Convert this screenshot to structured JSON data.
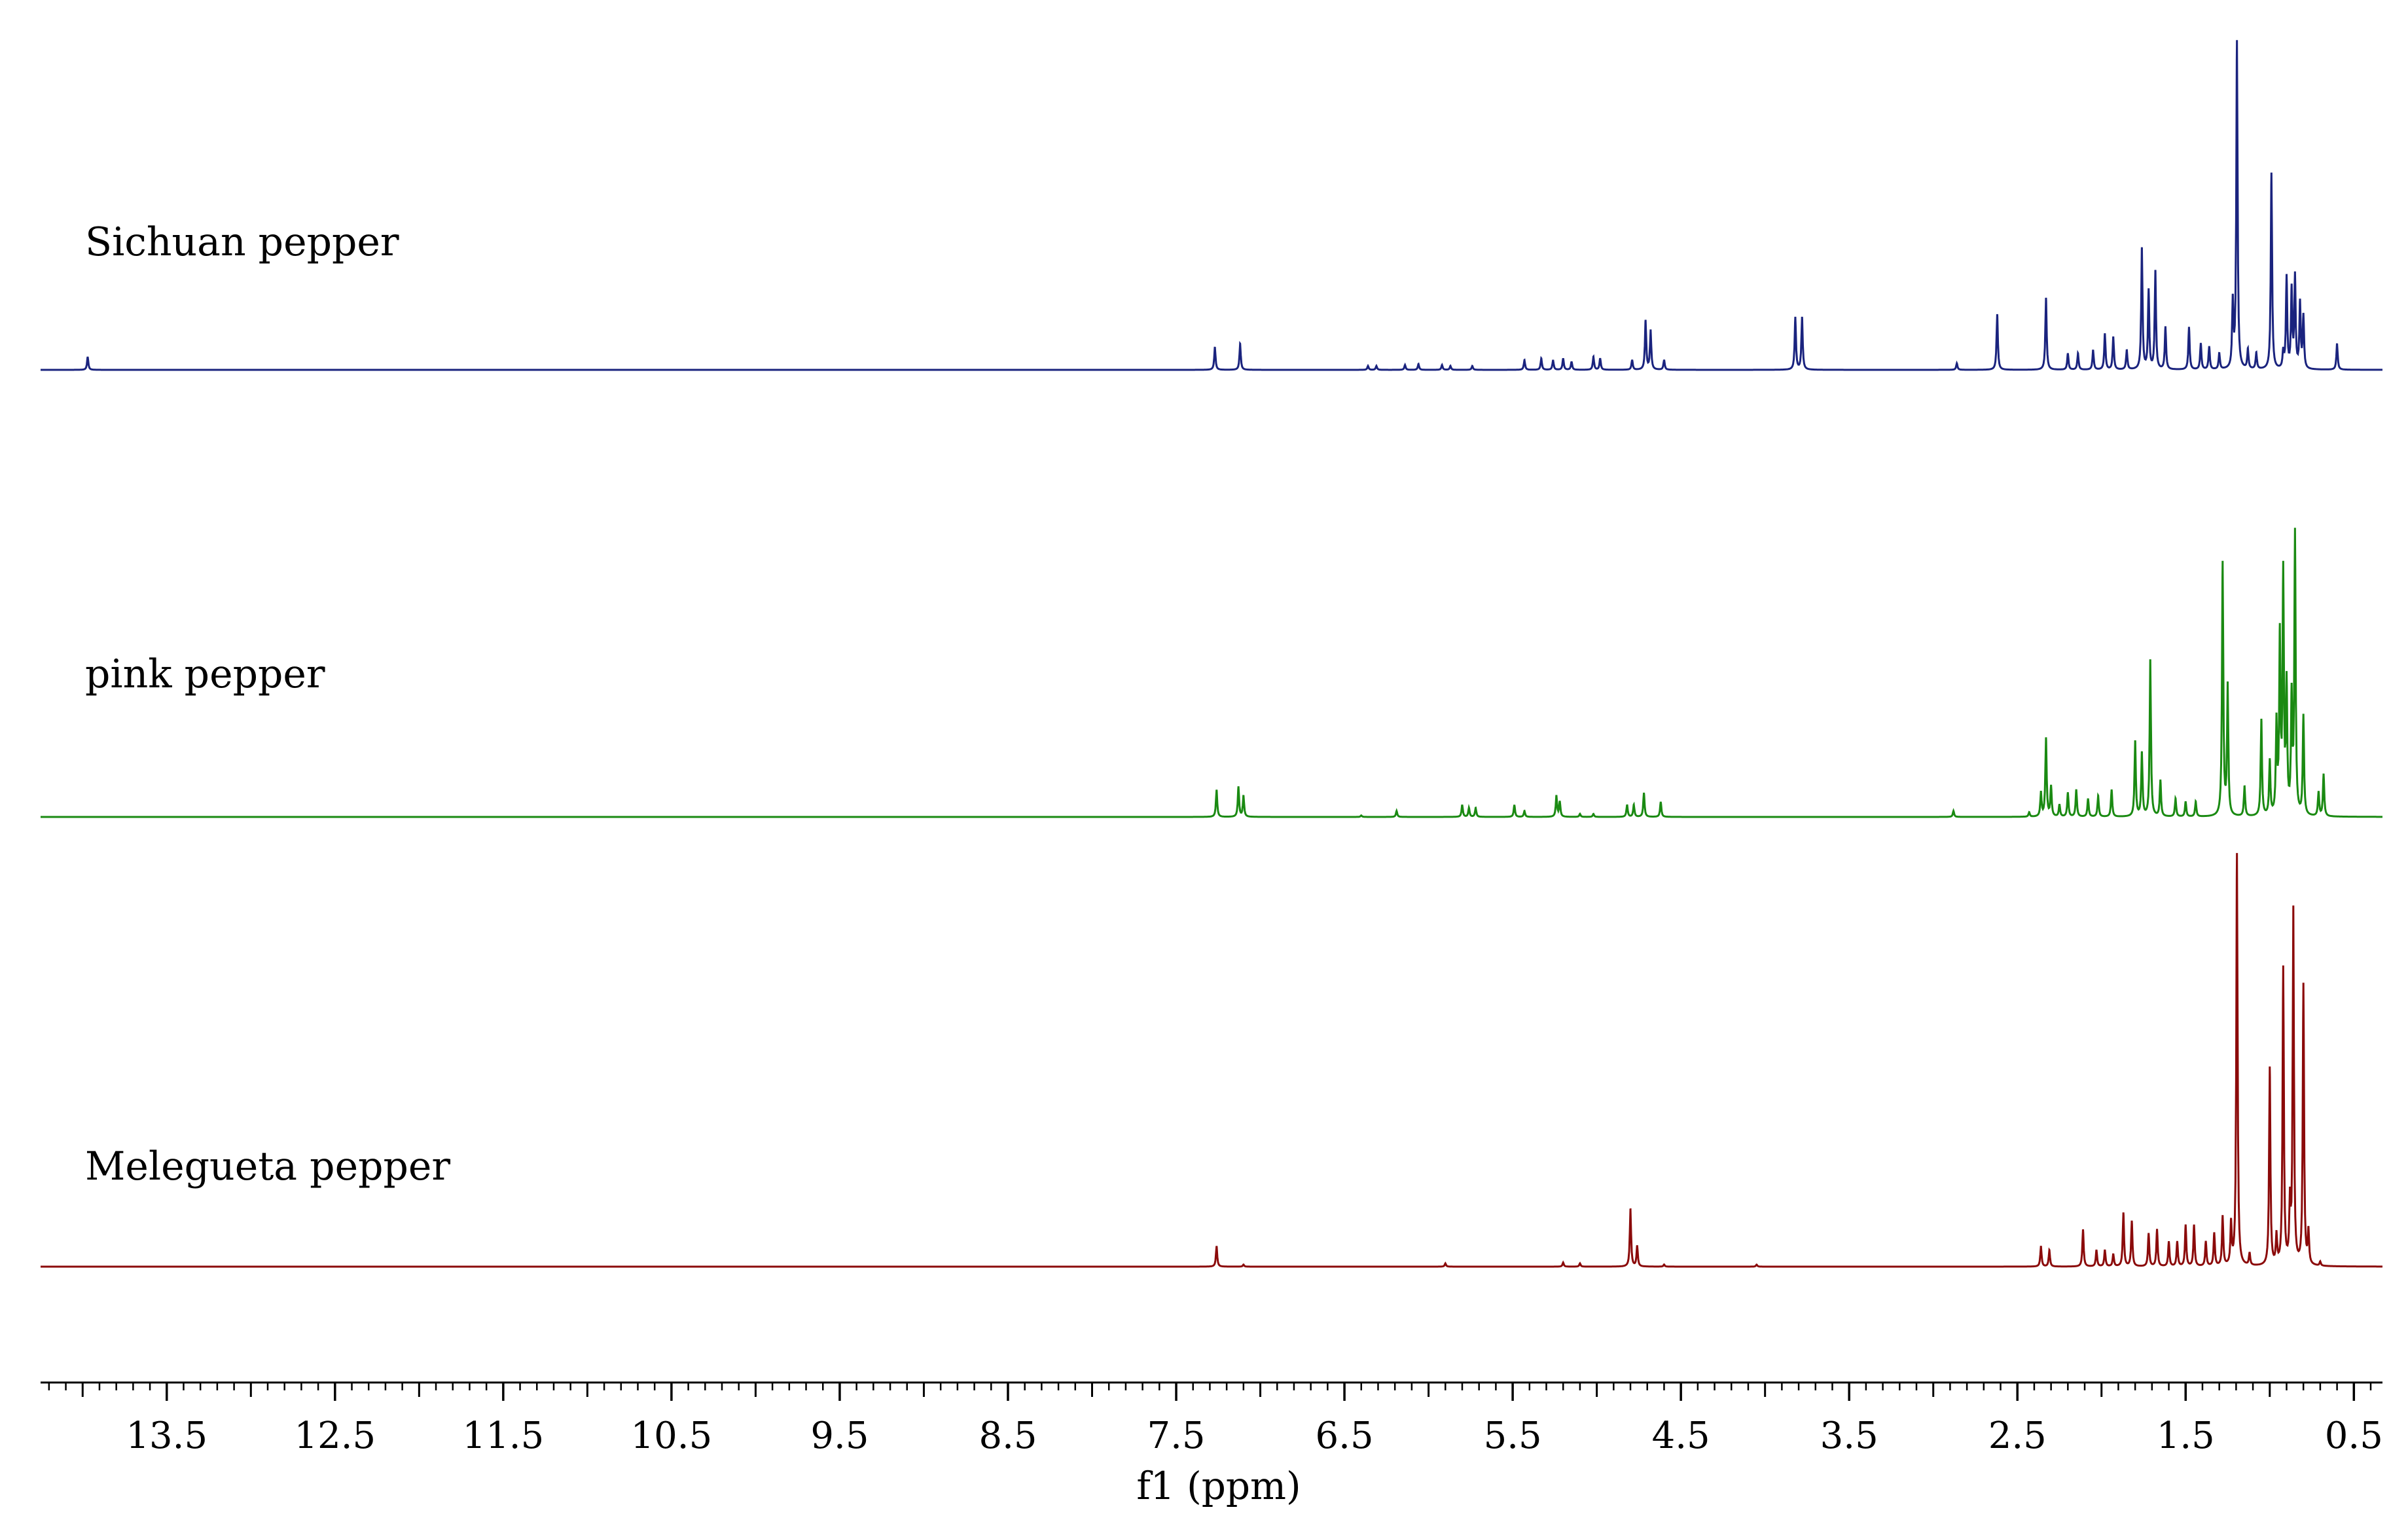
{
  "chart_data": {
    "type": "line",
    "title": "",
    "xlabel": "f1 (ppm)",
    "ylabel": "",
    "x_reversed": true,
    "xlim": [
      14.25,
      0.33
    ],
    "major_ticks": [
      13.5,
      12.5,
      11.5,
      10.5,
      9.5,
      8.5,
      7.5,
      6.5,
      5.5,
      4.5,
      3.5,
      2.5,
      1.5,
      0.5
    ],
    "tick_labels": [
      "13.5",
      "12.5",
      "11.5",
      "10.5",
      "9.5",
      "8.5",
      "7.5",
      "6.5",
      "5.5",
      "4.5",
      "3.5",
      "2.5",
      "1.5",
      "0.5"
    ],
    "minor_tick_step": 0.1,
    "grid": false,
    "legend": "none",
    "series": [
      {
        "name": "Sichuan pepper",
        "color": "#1a237e",
        "peaks": [
          {
            "ppm": 13.97,
            "h": 0.04
          },
          {
            "ppm": 7.27,
            "h": 0.07
          },
          {
            "ppm": 7.12,
            "h": 0.08
          },
          {
            "ppm": 6.36,
            "h": 0.012
          },
          {
            "ppm": 6.31,
            "h": 0.012
          },
          {
            "ppm": 6.14,
            "h": 0.015
          },
          {
            "ppm": 6.06,
            "h": 0.018
          },
          {
            "ppm": 5.92,
            "h": 0.015
          },
          {
            "ppm": 5.87,
            "h": 0.012
          },
          {
            "ppm": 5.74,
            "h": 0.012
          },
          {
            "ppm": 5.43,
            "h": 0.03
          },
          {
            "ppm": 5.33,
            "h": 0.035
          },
          {
            "ppm": 5.26,
            "h": 0.03
          },
          {
            "ppm": 5.2,
            "h": 0.035
          },
          {
            "ppm": 5.15,
            "h": 0.025
          },
          {
            "ppm": 5.02,
            "h": 0.04
          },
          {
            "ppm": 4.98,
            "h": 0.035
          },
          {
            "ppm": 4.79,
            "h": 0.03
          },
          {
            "ppm": 4.71,
            "h": 0.15
          },
          {
            "ppm": 4.68,
            "h": 0.12
          },
          {
            "ppm": 4.6,
            "h": 0.03
          },
          {
            "ppm": 3.82,
            "h": 0.16
          },
          {
            "ppm": 3.78,
            "h": 0.16
          },
          {
            "ppm": 2.86,
            "h": 0.02
          },
          {
            "ppm": 2.62,
            "h": 0.17
          },
          {
            "ppm": 2.33,
            "h": 0.22
          },
          {
            "ppm": 2.2,
            "h": 0.05
          },
          {
            "ppm": 2.14,
            "h": 0.05
          },
          {
            "ppm": 2.05,
            "h": 0.06
          },
          {
            "ppm": 1.98,
            "h": 0.11
          },
          {
            "ppm": 1.93,
            "h": 0.1
          },
          {
            "ppm": 1.85,
            "h": 0.06
          },
          {
            "ppm": 1.76,
            "h": 0.37
          },
          {
            "ppm": 1.72,
            "h": 0.24
          },
          {
            "ppm": 1.68,
            "h": 0.3
          },
          {
            "ppm": 1.62,
            "h": 0.13
          },
          {
            "ppm": 1.48,
            "h": 0.13
          },
          {
            "ppm": 1.41,
            "h": 0.08
          },
          {
            "ppm": 1.36,
            "h": 0.07
          },
          {
            "ppm": 1.3,
            "h": 0.05
          },
          {
            "ppm": 1.22,
            "h": 0.2
          },
          {
            "ppm": 1.195,
            "h": 1.0
          },
          {
            "ppm": 1.13,
            "h": 0.06
          },
          {
            "ppm": 1.08,
            "h": 0.05
          },
          {
            "ppm": 0.99,
            "h": 0.6
          },
          {
            "ppm": 0.92,
            "h": 0.05
          },
          {
            "ppm": 0.9,
            "h": 0.28
          },
          {
            "ppm": 0.87,
            "h": 0.24
          },
          {
            "ppm": 0.85,
            "h": 0.28
          },
          {
            "ppm": 0.82,
            "h": 0.2
          },
          {
            "ppm": 0.8,
            "h": 0.16
          },
          {
            "ppm": 0.6,
            "h": 0.08
          }
        ]
      },
      {
        "name": "pink pepper",
        "color": "#1a8a12",
        "peaks": [
          {
            "ppm": 7.26,
            "h": 0.09
          },
          {
            "ppm": 7.13,
            "h": 0.1
          },
          {
            "ppm": 7.1,
            "h": 0.07
          },
          {
            "ppm": 6.4,
            "h": 0.005
          },
          {
            "ppm": 6.19,
            "h": 0.02
          },
          {
            "ppm": 5.8,
            "h": 0.04
          },
          {
            "ppm": 5.76,
            "h": 0.03
          },
          {
            "ppm": 5.72,
            "h": 0.03
          },
          {
            "ppm": 5.49,
            "h": 0.04
          },
          {
            "ppm": 5.43,
            "h": 0.02
          },
          {
            "ppm": 5.24,
            "h": 0.07
          },
          {
            "ppm": 5.22,
            "h": 0.05
          },
          {
            "ppm": 5.1,
            "h": 0.01
          },
          {
            "ppm": 5.02,
            "h": 0.01
          },
          {
            "ppm": 4.82,
            "h": 0.04
          },
          {
            "ppm": 4.78,
            "h": 0.04
          },
          {
            "ppm": 4.72,
            "h": 0.08
          },
          {
            "ppm": 4.62,
            "h": 0.05
          },
          {
            "ppm": 2.88,
            "h": 0.02
          },
          {
            "ppm": 2.43,
            "h": 0.015
          },
          {
            "ppm": 2.36,
            "h": 0.08
          },
          {
            "ppm": 2.33,
            "h": 0.26
          },
          {
            "ppm": 2.3,
            "h": 0.1
          },
          {
            "ppm": 2.25,
            "h": 0.04
          },
          {
            "ppm": 2.2,
            "h": 0.08
          },
          {
            "ppm": 2.15,
            "h": 0.09
          },
          {
            "ppm": 2.08,
            "h": 0.06
          },
          {
            "ppm": 2.02,
            "h": 0.07
          },
          {
            "ppm": 1.94,
            "h": 0.09
          },
          {
            "ppm": 1.8,
            "h": 0.25
          },
          {
            "ppm": 1.76,
            "h": 0.21
          },
          {
            "ppm": 1.71,
            "h": 0.52
          },
          {
            "ppm": 1.65,
            "h": 0.12
          },
          {
            "ppm": 1.56,
            "h": 0.06
          },
          {
            "ppm": 1.5,
            "h": 0.05
          },
          {
            "ppm": 1.44,
            "h": 0.05
          },
          {
            "ppm": 1.28,
            "h": 0.84
          },
          {
            "ppm": 1.25,
            "h": 0.43
          },
          {
            "ppm": 1.15,
            "h": 0.1
          },
          {
            "ppm": 1.05,
            "h": 0.32
          },
          {
            "ppm": 1.0,
            "h": 0.18
          },
          {
            "ppm": 0.96,
            "h": 0.3
          },
          {
            "ppm": 0.94,
            "h": 0.58
          },
          {
            "ppm": 0.92,
            "h": 0.79
          },
          {
            "ppm": 0.9,
            "h": 0.42
          },
          {
            "ppm": 0.87,
            "h": 0.38
          },
          {
            "ppm": 0.85,
            "h": 0.93
          },
          {
            "ppm": 0.8,
            "h": 0.33
          },
          {
            "ppm": 0.71,
            "h": 0.08
          },
          {
            "ppm": 0.68,
            "h": 0.14
          }
        ]
      },
      {
        "name": "Melegueta pepper",
        "color": "#8b0a0a",
        "peaks": [
          {
            "ppm": 7.26,
            "h": 0.05
          },
          {
            "ppm": 7.1,
            "h": 0.005
          },
          {
            "ppm": 5.9,
            "h": 0.008
          },
          {
            "ppm": 5.2,
            "h": 0.01
          },
          {
            "ppm": 5.1,
            "h": 0.008
          },
          {
            "ppm": 4.8,
            "h": 0.14
          },
          {
            "ppm": 4.76,
            "h": 0.05
          },
          {
            "ppm": 4.6,
            "h": 0.005
          },
          {
            "ppm": 4.05,
            "h": 0.005
          },
          {
            "ppm": 2.36,
            "h": 0.05
          },
          {
            "ppm": 2.31,
            "h": 0.04
          },
          {
            "ppm": 2.11,
            "h": 0.09
          },
          {
            "ppm": 2.03,
            "h": 0.04
          },
          {
            "ppm": 1.98,
            "h": 0.04
          },
          {
            "ppm": 1.93,
            "h": 0.03
          },
          {
            "ppm": 1.87,
            "h": 0.13
          },
          {
            "ppm": 1.82,
            "h": 0.11
          },
          {
            "ppm": 1.72,
            "h": 0.08
          },
          {
            "ppm": 1.67,
            "h": 0.09
          },
          {
            "ppm": 1.6,
            "h": 0.06
          },
          {
            "ppm": 1.55,
            "h": 0.06
          },
          {
            "ppm": 1.5,
            "h": 0.1
          },
          {
            "ppm": 1.45,
            "h": 0.1
          },
          {
            "ppm": 1.38,
            "h": 0.06
          },
          {
            "ppm": 1.33,
            "h": 0.08
          },
          {
            "ppm": 1.28,
            "h": 0.12
          },
          {
            "ppm": 1.23,
            "h": 0.1
          },
          {
            "ppm": 1.195,
            "h": 1.0
          },
          {
            "ppm": 1.12,
            "h": 0.03
          },
          {
            "ppm": 1.0,
            "h": 0.48
          },
          {
            "ppm": 0.96,
            "h": 0.07
          },
          {
            "ppm": 0.92,
            "h": 0.72
          },
          {
            "ppm": 0.88,
            "h": 0.14
          },
          {
            "ppm": 0.86,
            "h": 0.86
          },
          {
            "ppm": 0.8,
            "h": 0.68
          },
          {
            "ppm": 0.77,
            "h": 0.08
          },
          {
            "ppm": 0.7,
            "h": 0.01
          }
        ]
      }
    ]
  }
}
